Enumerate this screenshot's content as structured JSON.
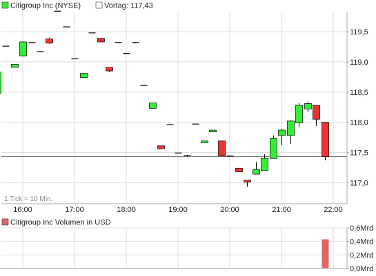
{
  "colors": {
    "up": "#33ee33",
    "down": "#ee3333",
    "volume": "#e06666",
    "grid": "#dddddd",
    "axis": "#aaaaaa",
    "text": "#222222",
    "prev_close_line": "#666666"
  },
  "legend": {
    "series_name": "Citigroup Inc (NYSE)",
    "prev_label": "Vortag: 117,43"
  },
  "volume_legend": {
    "series_name": "Citigroup Inc Volumen in USD"
  },
  "tick_note": "1 Tick = 10 Min.",
  "chart_data": [
    {
      "type": "candlestick",
      "title": "",
      "xlabel": "",
      "ylabel": "",
      "x_ticks": [
        "16:00",
        "17:00",
        "18:00",
        "19:00",
        "20:00",
        "21:00",
        "22:00"
      ],
      "y_ticks": [
        "117,0",
        "117,5",
        "118,0",
        "118,5",
        "119,0",
        "119,5"
      ],
      "ylim": [
        116.65,
        119.82
      ],
      "prev_close": 117.43,
      "grid": true,
      "legend_position": "top-left",
      "candles": [
        {
          "time": "15:30",
          "open": 118.48,
          "high": 119.55,
          "low": 118.48,
          "close": 118.83
        },
        {
          "time": "15:40",
          "open": 119.26,
          "high": 119.26,
          "low": 119.26,
          "close": 119.26
        },
        {
          "time": "15:50",
          "open": 118.91,
          "high": 118.96,
          "low": 118.91,
          "close": 118.96
        },
        {
          "time": "16:00",
          "open": 119.1,
          "high": 119.34,
          "low": 119.1,
          "close": 119.33
        },
        {
          "time": "16:10",
          "open": 119.32,
          "high": 119.32,
          "low": 119.32,
          "close": 119.32
        },
        {
          "time": "16:20",
          "open": 119.17,
          "high": 119.17,
          "low": 119.17,
          "close": 119.17
        },
        {
          "time": "16:30",
          "open": 119.38,
          "high": 119.4,
          "low": 119.3,
          "close": 119.31
        },
        {
          "time": "16:40",
          "open": 119.84,
          "high": 119.84,
          "low": 119.84,
          "close": 119.84
        },
        {
          "time": "16:50",
          "open": 119.58,
          "high": 119.58,
          "low": 119.58,
          "close": 119.58
        },
        {
          "time": "17:00",
          "open": 119.05,
          "high": 119.05,
          "low": 119.05,
          "close": 119.05
        },
        {
          "time": "17:10",
          "open": 118.74,
          "high": 118.81,
          "low": 118.74,
          "close": 118.81
        },
        {
          "time": "17:20",
          "open": 119.48,
          "high": 119.48,
          "low": 119.48,
          "close": 119.48
        },
        {
          "time": "17:30",
          "open": 119.39,
          "high": 119.39,
          "low": 119.33,
          "close": 119.33
        },
        {
          "time": "17:40",
          "open": 118.91,
          "high": 118.91,
          "low": 118.83,
          "close": 118.85
        },
        {
          "time": "17:50",
          "open": 119.32,
          "high": 119.32,
          "low": 119.32,
          "close": 119.32
        },
        {
          "time": "18:00",
          "open": 119.14,
          "high": 119.14,
          "low": 119.14,
          "close": 119.14
        },
        {
          "time": "18:10",
          "open": 119.32,
          "high": 119.32,
          "low": 119.31,
          "close": 119.31
        },
        {
          "time": "18:20",
          "open": 118.61,
          "high": 118.61,
          "low": 118.61,
          "close": 118.61
        },
        {
          "time": "18:30",
          "open": 118.23,
          "high": 118.32,
          "low": 118.23,
          "close": 118.32
        },
        {
          "time": "18:40",
          "open": 117.61,
          "high": 117.61,
          "low": 117.56,
          "close": 117.56
        },
        {
          "time": "18:50",
          "open": 117.96,
          "high": 117.96,
          "low": 117.96,
          "close": 117.96
        },
        {
          "time": "19:00",
          "open": 117.49,
          "high": 117.49,
          "low": 117.49,
          "close": 117.49
        },
        {
          "time": "19:10",
          "open": 117.45,
          "high": 117.45,
          "low": 117.43,
          "close": 117.44
        },
        {
          "time": "19:20",
          "open": 117.97,
          "high": 117.97,
          "low": 117.97,
          "close": 117.97
        },
        {
          "time": "19:30",
          "open": 117.66,
          "high": 117.69,
          "low": 117.66,
          "close": 117.69
        },
        {
          "time": "19:40",
          "open": 117.84,
          "high": 117.87,
          "low": 117.84,
          "close": 117.87
        },
        {
          "time": "19:50",
          "open": 117.69,
          "high": 117.69,
          "low": 117.44,
          "close": 117.44
        },
        {
          "time": "20:00",
          "open": 117.44,
          "high": 117.44,
          "low": 117.44,
          "close": 117.44
        },
        {
          "time": "20:10",
          "open": 117.24,
          "high": 117.24,
          "low": 117.18,
          "close": 117.18
        },
        {
          "time": "20:20",
          "open": 117.04,
          "high": 117.04,
          "low": 116.93,
          "close": 117.01
        },
        {
          "time": "20:30",
          "open": 117.14,
          "high": 117.34,
          "low": 117.14,
          "close": 117.22
        },
        {
          "time": "20:40",
          "open": 117.2,
          "high": 117.47,
          "low": 117.2,
          "close": 117.4
        },
        {
          "time": "20:50",
          "open": 117.4,
          "high": 117.78,
          "low": 117.4,
          "close": 117.73
        },
        {
          "time": "21:00",
          "open": 117.78,
          "high": 117.88,
          "low": 117.62,
          "close": 117.87
        },
        {
          "time": "21:10",
          "open": 117.78,
          "high": 118.03,
          "low": 117.64,
          "close": 118.02
        },
        {
          "time": "21:20",
          "open": 117.99,
          "high": 118.32,
          "low": 117.92,
          "close": 118.28
        },
        {
          "time": "21:30",
          "open": 118.22,
          "high": 118.34,
          "low": 118.17,
          "close": 118.31
        },
        {
          "time": "21:40",
          "open": 118.28,
          "high": 118.28,
          "low": 117.94,
          "close": 118.05
        },
        {
          "time": "21:50",
          "open": 118.0,
          "high": 118.0,
          "low": 117.37,
          "close": 117.43
        }
      ]
    },
    {
      "type": "bar",
      "title": "",
      "xlabel": "",
      "ylabel": "",
      "y_ticks": [
        "0,0Mrd",
        "0,2Mrd",
        "0,4Mrd",
        "0,6Mrd"
      ],
      "ylim": [
        0,
        0.6
      ],
      "unit": "Mrd USD",
      "grid": true,
      "values": [
        0.004,
        0.004,
        0.004,
        0.004,
        0.004,
        0.004,
        0.004,
        0.004,
        0.004,
        0.004,
        0.004,
        0.004,
        0.004,
        0.004,
        0.004,
        0.004,
        0.004,
        0.004,
        0.004,
        0.004,
        0.004,
        0.004,
        0.004,
        0.004,
        0.004,
        0.004,
        0.004,
        0.004,
        0.004,
        0.004,
        0.004,
        0.004,
        0.004,
        0.004,
        0.004,
        0.004,
        0.004,
        0.004,
        0.43
      ]
    }
  ]
}
